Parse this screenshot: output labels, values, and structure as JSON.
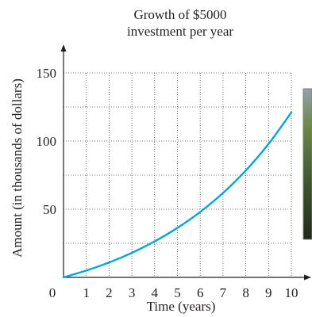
{
  "chart_data": {
    "type": "line",
    "title": "Growth of $5000",
    "subtitle": "investment per year",
    "xlabel": "Time (years)",
    "ylabel": "Amount (in thousands of dollars)",
    "xlim": [
      0,
      10
    ],
    "ylim": [
      0,
      150
    ],
    "xticks": [
      0,
      1,
      2,
      3,
      4,
      5,
      6,
      7,
      8,
      9,
      10
    ],
    "yticks": [
      50,
      100,
      150
    ],
    "x_tick_labels": [
      "0",
      "1",
      "2",
      "3",
      "4",
      "5",
      "6",
      "7",
      "8",
      "9",
      "10"
    ],
    "y_tick_labels": [
      "50",
      "100",
      "150"
    ],
    "x_gridlines": [
      1,
      2,
      3,
      4,
      5,
      6,
      7,
      8,
      9,
      10
    ],
    "y_gridlines": [
      25,
      50,
      75,
      100,
      125
    ],
    "grid": true,
    "series": [
      {
        "color": "#00a7e1",
        "x": [
          0,
          1,
          2,
          3,
          4,
          5,
          6,
          7,
          8,
          9,
          10
        ],
        "y": [
          0,
          5.0,
          10.9,
          18.0,
          26.4,
          36.3,
          48.0,
          61.9,
          78.4,
          97.9,
          121.0
        ]
      }
    ]
  },
  "photo": {
    "colors": [
      "#1d2b16",
      "#3f5a2c",
      "#6f8d4a",
      "#94a1b0"
    ]
  }
}
